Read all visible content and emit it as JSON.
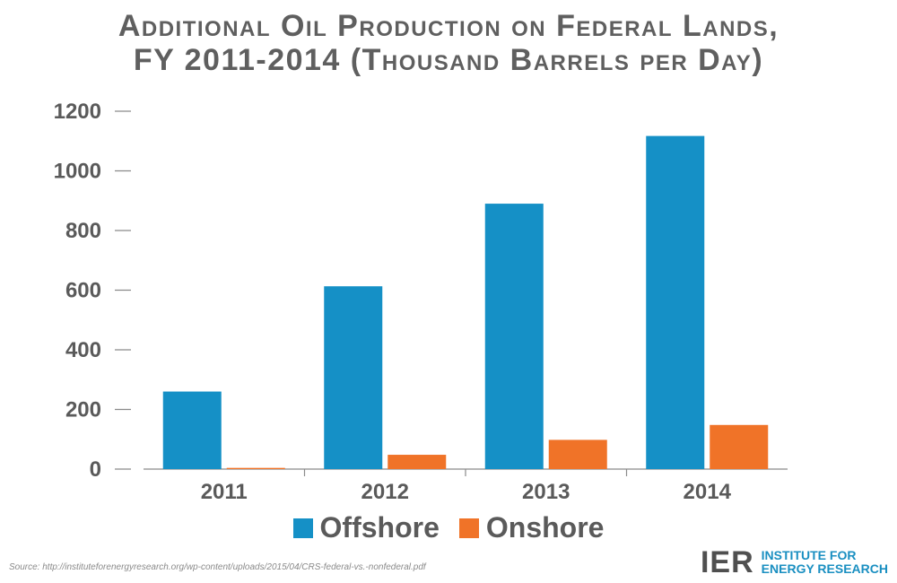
{
  "title_line1": "Additional Oil Production on Federal Lands,",
  "title_line2": "FY 2011-2014 (Thousand Barrels per Day)",
  "source": "Source: http://instituteforenergyresearch.org/wp-content/uploads/2015/04/CRS-federal-vs.-nonfederal.pdf",
  "logo": {
    "mark": "IER",
    "line1": "INSTITUTE FOR",
    "line2": "ENERGY RESEARCH"
  },
  "colors": {
    "offshore": "#1590c6",
    "onshore": "#f07328",
    "axis": "#8a8a8a",
    "text": "#5a5a5a"
  },
  "chart_data": {
    "type": "bar",
    "title": "Additional Oil Production on Federal Lands, FY 2011-2014 (Thousand Barrels per Day)",
    "categories": [
      "2011",
      "2012",
      "2013",
      "2014"
    ],
    "series": [
      {
        "name": "Offshore",
        "values": [
          260,
          613,
          890,
          1117
        ]
      },
      {
        "name": "Onshore",
        "values": [
          4,
          48,
          98,
          148
        ]
      }
    ],
    "ylim": [
      0,
      1200
    ],
    "yticks": [
      0,
      200,
      400,
      600,
      800,
      1000,
      1200
    ],
    "grid": false,
    "legend": "bottom"
  }
}
